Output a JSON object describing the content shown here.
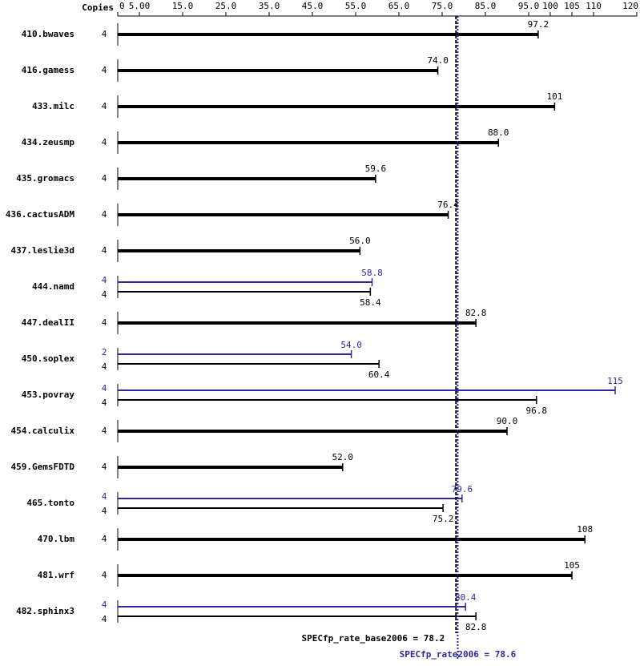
{
  "chart_data": {
    "type": "bar",
    "orientation": "horizontal",
    "copies_label": "Copies",
    "categories": [
      "410.bwaves",
      "416.gamess",
      "433.milc",
      "434.zeusmp",
      "435.gromacs",
      "436.cactusADM",
      "437.leslie3d",
      "444.namd",
      "447.dealII",
      "450.soplex",
      "453.povray",
      "454.calculix",
      "459.GemsFDTD",
      "465.tonto",
      "470.lbm",
      "481.wrf",
      "482.sphinx3"
    ],
    "series": [
      {
        "color": "#000000",
        "copies": [
          4,
          4,
          4,
          4,
          4,
          4,
          4,
          4,
          4,
          4,
          4,
          4,
          4,
          4,
          4,
          4,
          4
        ],
        "values": [
          97.2,
          74.0,
          101,
          88.0,
          59.6,
          76.4,
          56.0,
          58.4,
          82.8,
          60.4,
          96.8,
          90.0,
          52.0,
          75.2,
          108,
          105,
          82.8
        ],
        "value_labels": [
          "97.2",
          "74.0",
          "101",
          "88.0",
          "59.6",
          "76.4",
          "56.0",
          "58.4",
          "82.8",
          "60.4",
          "96.8",
          "90.0",
          "52.0",
          "75.2",
          "108",
          "105",
          "82.8"
        ]
      },
      {
        "color": "#2a2a9c",
        "copies": [
          null,
          null,
          null,
          null,
          null,
          null,
          null,
          4,
          null,
          2,
          4,
          null,
          null,
          4,
          null,
          null,
          4
        ],
        "values": [
          null,
          null,
          null,
          null,
          null,
          null,
          null,
          58.8,
          null,
          54.0,
          115,
          null,
          null,
          79.6,
          null,
          null,
          80.4
        ],
        "value_labels": [
          null,
          null,
          null,
          null,
          null,
          null,
          null,
          "58.8",
          null,
          "54.0",
          "115",
          null,
          null,
          "79.6",
          null,
          null,
          "80.4"
        ]
      }
    ],
    "xlim": [
      0,
      120
    ],
    "xticks": [
      0,
      {
        "value": 5,
        "label": "5.00"
      },
      {
        "value": 15,
        "label": "15.0"
      },
      {
        "value": 25,
        "label": "25.0"
      },
      {
        "value": 35,
        "label": "35.0"
      },
      {
        "value": 45,
        "label": "45.0"
      },
      {
        "value": 55,
        "label": "55.0"
      },
      {
        "value": 65,
        "label": "65.0"
      },
      {
        "value": 75,
        "label": "75.0"
      },
      {
        "value": 85,
        "label": "85.0"
      },
      {
        "value": 95,
        "label": "95.0"
      },
      100,
      105,
      110,
      120
    ],
    "reference_lines": [
      {
        "label": "SPECfp_rate_base2006 = 78.2",
        "value": 78.2,
        "color": "#000000"
      },
      {
        "label": "SPECfp_rate2006 = 78.6",
        "value": 78.6,
        "color": "#2a2a9c"
      }
    ]
  }
}
